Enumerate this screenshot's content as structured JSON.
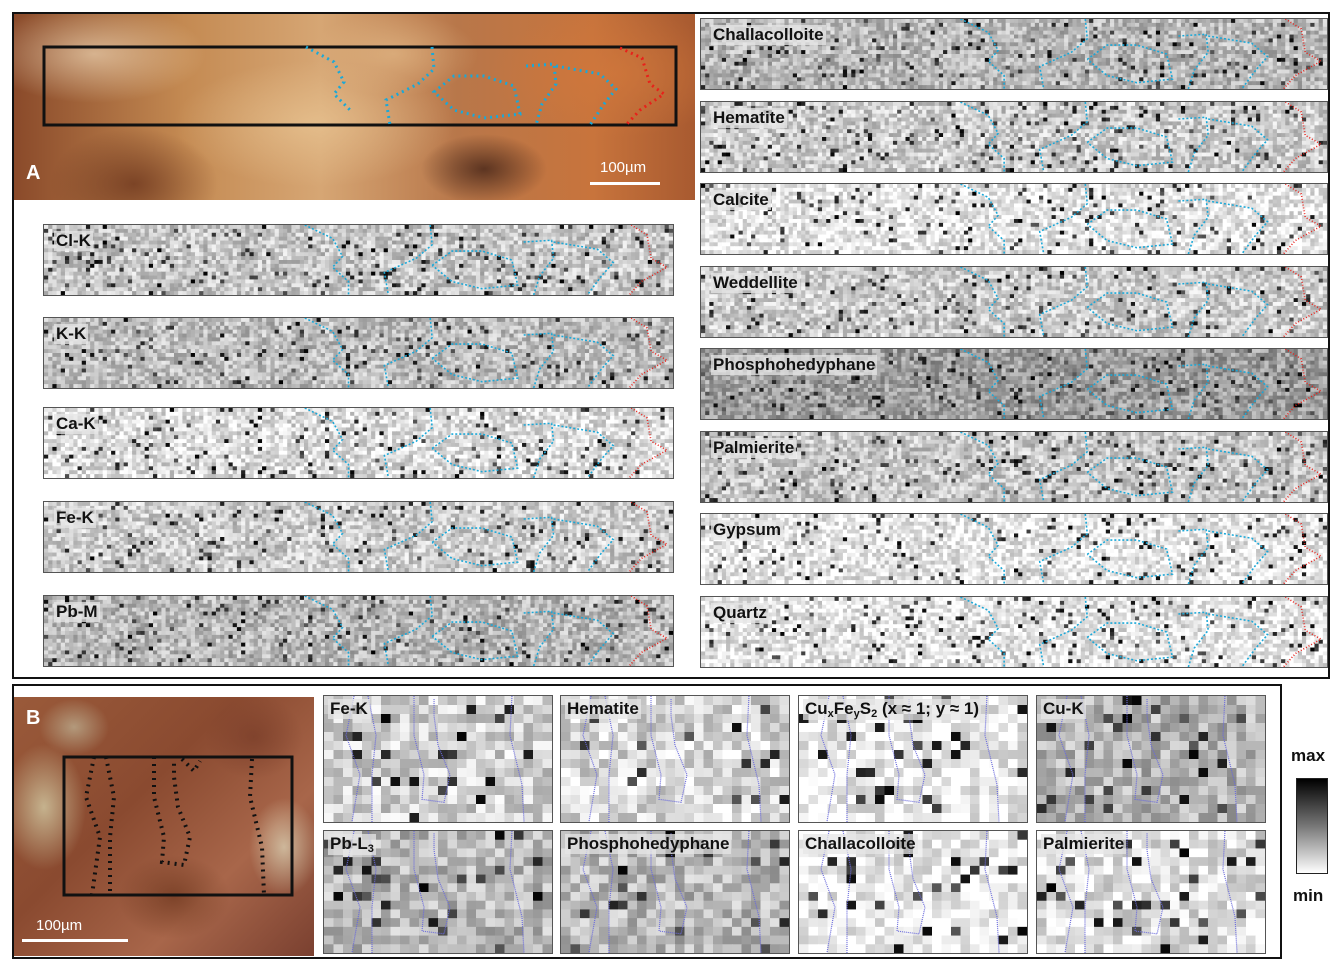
{
  "panel_a": {
    "letter": "A",
    "scale_label": "100µm",
    "element_maps": [
      {
        "label": "Cl-K",
        "tone": 0.78,
        "seed": 11
      },
      {
        "label": "K-K",
        "tone": 0.74,
        "seed": 23
      },
      {
        "label": "Ca-K",
        "tone": 0.86,
        "seed": 37
      },
      {
        "label": "Fe-K",
        "tone": 0.8,
        "seed": 41
      },
      {
        "label": "Pb-M",
        "tone": 0.72,
        "seed": 53
      }
    ],
    "mineral_maps": [
      {
        "label": "Challacolloite",
        "tone": 0.72,
        "seed": 61
      },
      {
        "label": "Hematite",
        "tone": 0.8,
        "seed": 67
      },
      {
        "label": "Calcite",
        "tone": 0.9,
        "seed": 71
      },
      {
        "label": "Weddellite",
        "tone": 0.8,
        "seed": 79
      },
      {
        "label": "Phosphohedyphane",
        "tone": 0.62,
        "seed": 83
      },
      {
        "label": "Palmierite",
        "tone": 0.78,
        "seed": 89
      },
      {
        "label": "Gypsum",
        "tone": 0.9,
        "seed": 97
      },
      {
        "label": "Quartz",
        "tone": 0.9,
        "seed": 101
      }
    ]
  },
  "panel_b": {
    "letter": "B",
    "scale_label": "100µm",
    "maps": [
      {
        "label": "Fe-K",
        "tone": 0.82,
        "seed": 7
      },
      {
        "label": "Hematite",
        "tone": 0.84,
        "seed": 13
      },
      {
        "label_parts": [
          "Cu",
          "x",
          "Fe",
          "y",
          "S",
          "2",
          " (x ≈ 1; y ≈ 1)"
        ],
        "tone": 0.93,
        "seed": 17
      },
      {
        "label": "Cu-K",
        "tone": 0.7,
        "seed": 19
      },
      {
        "label_parts": [
          "Pb-L",
          "3"
        ],
        "tone": 0.72,
        "seed": 29
      },
      {
        "label": "Phosphohedyphane",
        "tone": 0.72,
        "seed": 31
      },
      {
        "label": "Challacolloite",
        "tone": 0.94,
        "seed": 43
      },
      {
        "label": "Palmierite",
        "tone": 0.88,
        "seed": 47
      }
    ],
    "colorbar": {
      "max_label": "max",
      "min_label": "min"
    }
  },
  "colors": {
    "cyan_boundary": "#1aa8d8",
    "red_boundary": "#e8201a",
    "blue_boundary": "#6a6adc",
    "frame": "#111111"
  }
}
